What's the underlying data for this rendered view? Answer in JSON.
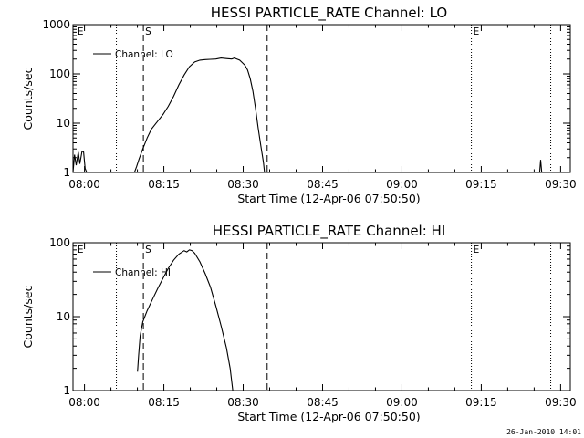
{
  "footer": {
    "timestamp": "26-Jan-2010 14:01"
  },
  "chart_data": [
    {
      "type": "line",
      "title": "HESSI PARTICLE_RATE Channel: LO",
      "xlabel": "Start Time (12-Apr-06 07:50:50)",
      "ylabel": "Counts/sec",
      "y_scale": "log",
      "ylim": [
        1,
        1000
      ],
      "xlim_minutes": [
        7.0,
        101.0
      ],
      "x_ticks": [
        {
          "label": "08:00",
          "minute": 9.17
        },
        {
          "label": "08:15",
          "minute": 24.17
        },
        {
          "label": "08:30",
          "minute": 39.17
        },
        {
          "label": "08:45",
          "minute": 54.17
        },
        {
          "label": "09:00",
          "minute": 69.17
        },
        {
          "label": "09:15",
          "minute": 84.17
        },
        {
          "label": "09:30",
          "minute": 99.17
        }
      ],
      "y_ticks": [
        {
          "label": "1",
          "value": 1
        },
        {
          "label": "10",
          "value": 10
        },
        {
          "label": "100",
          "value": 100
        },
        {
          "label": "1000",
          "value": 1000
        }
      ],
      "legend": {
        "label": "Channel: LO",
        "position": "top-left"
      },
      "markers": [
        {
          "label": "E",
          "minute": 7.5,
          "style": "dotted",
          "line": false
        },
        {
          "label": "",
          "minute": 15.2,
          "style": "dotted",
          "line": true
        },
        {
          "label": "S",
          "minute": 20.3,
          "style": "dashed",
          "line": true
        },
        {
          "label": "",
          "minute": 43.7,
          "style": "dashed",
          "line": true
        },
        {
          "label": "E",
          "minute": 82.3,
          "style": "dotted",
          "line": true
        },
        {
          "label": "",
          "minute": 97.3,
          "style": "dotted",
          "line": true
        }
      ],
      "series": [
        {
          "name": "Channel: LO",
          "segments": [
            [
              [
                7.0,
                1.0
              ],
              [
                7.3,
                2.3
              ],
              [
                7.6,
                1.4
              ],
              [
                8.0,
                2.6
              ],
              [
                8.3,
                1.5
              ],
              [
                8.7,
                2.7
              ],
              [
                9.0,
                2.6
              ],
              [
                9.3,
                1.2
              ],
              [
                9.6,
                1.0
              ]
            ],
            [
              [
                18.6,
                1.0
              ],
              [
                19.0,
                1.3
              ],
              [
                19.5,
                1.9
              ],
              [
                20.2,
                3.0
              ],
              [
                21.0,
                5.0
              ],
              [
                21.8,
                7.5
              ],
              [
                23.0,
                11
              ],
              [
                24.0,
                15
              ],
              [
                25.0,
                22
              ],
              [
                26.0,
                35
              ],
              [
                27.0,
                60
              ],
              [
                28.0,
                95
              ],
              [
                29.0,
                140
              ],
              [
                30.0,
                175
              ],
              [
                31.0,
                190
              ],
              [
                32.0,
                195
              ],
              [
                33.0,
                198
              ],
              [
                34.0,
                200
              ],
              [
                35.0,
                210
              ],
              [
                36.0,
                205
              ],
              [
                37.0,
                200
              ],
              [
                37.5,
                210
              ],
              [
                38.0,
                200
              ],
              [
                38.5,
                190
              ],
              [
                39.0,
                170
              ],
              [
                39.5,
                150
              ],
              [
                40.0,
                120
              ],
              [
                40.5,
                80
              ],
              [
                41.0,
                45
              ],
              [
                41.5,
                20
              ],
              [
                42.0,
                8
              ],
              [
                42.5,
                3.5
              ],
              [
                43.0,
                1.6
              ],
              [
                43.2,
                1.0
              ]
            ],
            [
              [
                95.2,
                1.0
              ],
              [
                95.4,
                1.8
              ],
              [
                95.6,
                1.0
              ]
            ]
          ]
        }
      ]
    },
    {
      "type": "line",
      "title": "HESSI PARTICLE_RATE Channel: HI",
      "xlabel": "Start Time (12-Apr-06 07:50:50)",
      "ylabel": "Counts/sec",
      "y_scale": "log",
      "ylim": [
        1,
        100
      ],
      "xlim_minutes": [
        7.0,
        101.0
      ],
      "x_ticks": [
        {
          "label": "08:00",
          "minute": 9.17
        },
        {
          "label": "08:15",
          "minute": 24.17
        },
        {
          "label": "08:30",
          "minute": 39.17
        },
        {
          "label": "08:45",
          "minute": 54.17
        },
        {
          "label": "09:00",
          "minute": 69.17
        },
        {
          "label": "09:15",
          "minute": 84.17
        },
        {
          "label": "09:30",
          "minute": 99.17
        }
      ],
      "y_ticks": [
        {
          "label": "1",
          "value": 1
        },
        {
          "label": "10",
          "value": 10
        },
        {
          "label": "100",
          "value": 100
        }
      ],
      "legend": {
        "label": "Channel: HI",
        "position": "top-left"
      },
      "markers": [
        {
          "label": "E",
          "minute": 7.5,
          "style": "dotted",
          "line": false
        },
        {
          "label": "",
          "minute": 15.2,
          "style": "dotted",
          "line": true
        },
        {
          "label": "S",
          "minute": 20.3,
          "style": "dashed",
          "line": true
        },
        {
          "label": "",
          "minute": 43.7,
          "style": "dashed",
          "line": true
        },
        {
          "label": "E",
          "minute": 82.3,
          "style": "dotted",
          "line": true
        },
        {
          "label": "",
          "minute": 97.3,
          "style": "dotted",
          "line": true
        }
      ],
      "series": [
        {
          "name": "Channel: HI",
          "segments": [
            [
              [
                19.2,
                1.8
              ],
              [
                19.4,
                3.0
              ],
              [
                19.7,
                5.5
              ],
              [
                20.2,
                8.5
              ],
              [
                21.0,
                12
              ],
              [
                22.0,
                17
              ],
              [
                23.0,
                24
              ],
              [
                24.0,
                33
              ],
              [
                25.0,
                45
              ],
              [
                26.0,
                58
              ],
              [
                27.0,
                70
              ],
              [
                28.0,
                78
              ],
              [
                28.5,
                75
              ],
              [
                29.0,
                80
              ],
              [
                29.5,
                78
              ],
              [
                30.0,
                72
              ],
              [
                31.0,
                55
              ],
              [
                32.0,
                38
              ],
              [
                33.0,
                25
              ],
              [
                34.0,
                14
              ],
              [
                35.0,
                7.5
              ],
              [
                36.0,
                3.8
              ],
              [
                36.7,
                2.0
              ],
              [
                37.2,
                1.0
              ]
            ]
          ]
        }
      ]
    }
  ]
}
